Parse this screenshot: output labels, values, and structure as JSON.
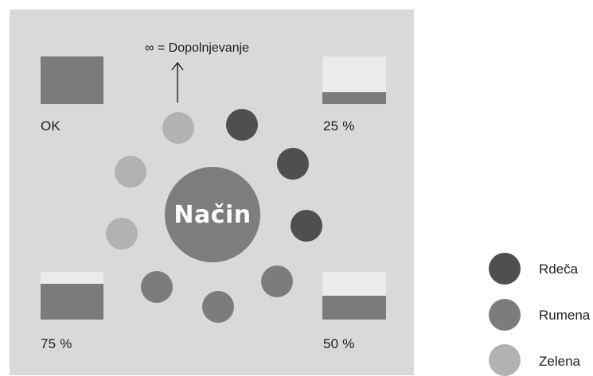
{
  "colors": {
    "panel_background": "#d9d9d9",
    "tank_fill": "#7b7b7b",
    "tank_empty": "#ebebeb",
    "center_fill": "#7d7d7d",
    "center_text": "#ffffff",
    "red": "#4f4f4f",
    "yellow": "#7c7c7c",
    "green": "#b2b2b2"
  },
  "center": {
    "label": "Način"
  },
  "indicator_note": {
    "text": "∞ = Dopolnjevanje",
    "arrow_icon": "up-arrow-icon"
  },
  "tanks": [
    {
      "id": "ok",
      "label": "OK",
      "fill_level": 1.0
    },
    {
      "id": "25",
      "label": "25 %",
      "fill_level": 0.25
    },
    {
      "id": "75",
      "label": "75 %",
      "fill_level": 0.75
    },
    {
      "id": "50",
      "label": "50 %",
      "fill_level": 0.5
    }
  ],
  "ring_dots": [
    {
      "id": "top",
      "color": "green"
    },
    {
      "id": "upper-right-1",
      "color": "red"
    },
    {
      "id": "upper-right-2",
      "color": "red"
    },
    {
      "id": "right",
      "color": "red"
    },
    {
      "id": "lower-right",
      "color": "yellow"
    },
    {
      "id": "bottom",
      "color": "yellow"
    },
    {
      "id": "lower-left",
      "color": "yellow"
    },
    {
      "id": "left",
      "color": "green"
    },
    {
      "id": "upper-left",
      "color": "green"
    }
  ],
  "legend": [
    {
      "label": "Rdeča",
      "color": "red"
    },
    {
      "label": "Rumena",
      "color": "yellow"
    },
    {
      "label": "Zelena",
      "color": "green"
    }
  ]
}
